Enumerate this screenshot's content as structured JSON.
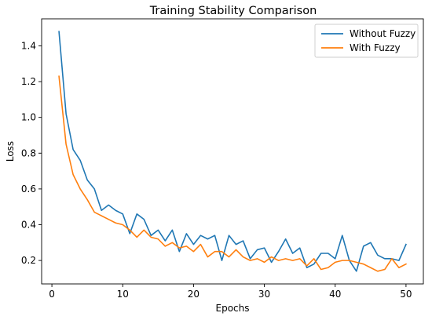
{
  "chart_data": {
    "type": "line",
    "title": "Training Stability Comparison",
    "xlabel": "Epochs",
    "ylabel": "Loss",
    "xlim": [
      -1.45,
      52.45
    ],
    "ylim": [
      0.069,
      1.551
    ],
    "x_ticks": [
      0,
      10,
      20,
      30,
      40,
      50
    ],
    "y_ticks": [
      0.2,
      0.4,
      0.6,
      0.8,
      1.0,
      1.2,
      1.4
    ],
    "y_tick_labels": [
      "0.2",
      "0.4",
      "0.6",
      "0.8",
      "1.0",
      "1.2",
      "1.4"
    ],
    "grid": false,
    "legend_position": "top-right",
    "x": [
      1,
      2,
      3,
      4,
      5,
      6,
      7,
      8,
      9,
      10,
      11,
      12,
      13,
      14,
      15,
      16,
      17,
      18,
      19,
      20,
      21,
      22,
      23,
      24,
      25,
      26,
      27,
      28,
      29,
      30,
      31,
      32,
      33,
      34,
      35,
      36,
      37,
      38,
      39,
      40,
      41,
      42,
      43,
      44,
      45,
      46,
      47,
      48,
      49,
      50
    ],
    "series": [
      {
        "name": "Without Fuzzy",
        "color": "#1f77b4",
        "values": [
          1.48,
          1.02,
          0.82,
          0.76,
          0.65,
          0.6,
          0.48,
          0.51,
          0.48,
          0.46,
          0.35,
          0.46,
          0.43,
          0.34,
          0.37,
          0.31,
          0.37,
          0.25,
          0.35,
          0.29,
          0.34,
          0.32,
          0.34,
          0.2,
          0.34,
          0.29,
          0.31,
          0.21,
          0.26,
          0.27,
          0.19,
          0.25,
          0.32,
          0.24,
          0.27,
          0.16,
          0.18,
          0.24,
          0.24,
          0.21,
          0.34,
          0.2,
          0.14,
          0.28,
          0.3,
          0.23,
          0.21,
          0.21,
          0.2,
          0.29
        ]
      },
      {
        "name": "With Fuzzy",
        "color": "#ff7f0e",
        "values": [
          1.23,
          0.85,
          0.68,
          0.6,
          0.54,
          0.47,
          0.45,
          0.43,
          0.41,
          0.4,
          0.37,
          0.33,
          0.37,
          0.33,
          0.32,
          0.28,
          0.3,
          0.27,
          0.28,
          0.25,
          0.29,
          0.22,
          0.25,
          0.25,
          0.22,
          0.26,
          0.22,
          0.2,
          0.21,
          0.19,
          0.22,
          0.2,
          0.21,
          0.2,
          0.21,
          0.17,
          0.21,
          0.15,
          0.16,
          0.19,
          0.2,
          0.2,
          0.19,
          0.18,
          0.16,
          0.14,
          0.15,
          0.21,
          0.16,
          0.18
        ]
      }
    ]
  }
}
